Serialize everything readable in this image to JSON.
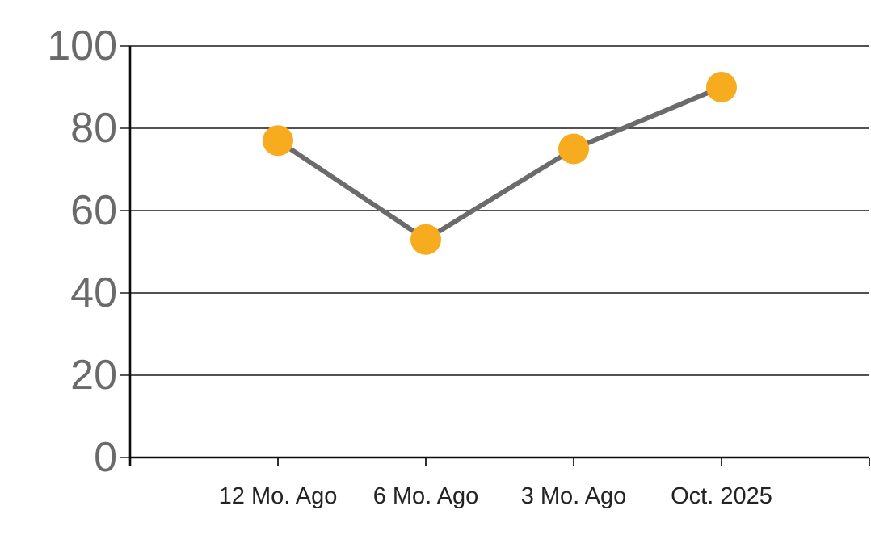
{
  "chart_data": {
    "type": "line",
    "title": "",
    "xlabel": "",
    "ylabel": "",
    "categories": [
      "12 Mo. Ago",
      "6 Mo. Ago",
      "3 Mo. Ago",
      "Oct. 2025"
    ],
    "values": [
      77,
      53,
      75,
      90
    ],
    "ylim": [
      0,
      100
    ],
    "yticks": [
      0,
      20,
      40,
      60,
      80,
      100
    ],
    "grid": true,
    "legend": false,
    "marker_shape": "circle",
    "colors": {
      "marker": "#F7AB1E",
      "line": "#6B6B6B",
      "gridline": "#1A1A1A",
      "axis": "#0D0D0D",
      "y_tick_label": "#6A6A6A",
      "x_tick_label": "#232323",
      "background": "#FFFFFF"
    }
  }
}
